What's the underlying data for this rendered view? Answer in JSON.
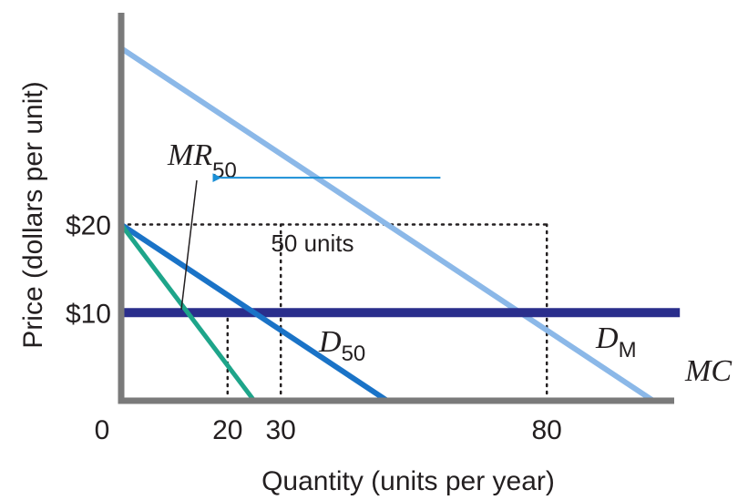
{
  "chart_data": {
    "type": "line",
    "title": "",
    "xlabel": "Quantity (units per year)",
    "ylabel": "Price (dollars per unit)",
    "xlim": [
      0,
      100
    ],
    "ylim": [
      0,
      40
    ],
    "x_ticks": [
      {
        "value": 0,
        "label": "0"
      },
      {
        "value": 20,
        "label": "20"
      },
      {
        "value": 30,
        "label": "30"
      },
      {
        "value": 80,
        "label": "80"
      }
    ],
    "y_ticks": [
      {
        "value": 10,
        "label": "$10"
      },
      {
        "value": 20,
        "label": "$20"
      }
    ],
    "series": [
      {
        "name": "D_M",
        "label_main": "D",
        "label_sub": "M",
        "color": "#8bb8e8",
        "points": [
          [
            0,
            40
          ],
          [
            100,
            0
          ]
        ]
      },
      {
        "name": "D_50",
        "label_main": "D",
        "label_sub": "50",
        "color": "#1a73c7",
        "points": [
          [
            0,
            20
          ],
          [
            50,
            0
          ]
        ]
      },
      {
        "name": "MR_50",
        "label_main": "MR",
        "label_sub": "50",
        "color": "#1ea58a",
        "points": [
          [
            0,
            20
          ],
          [
            25,
            0
          ]
        ]
      },
      {
        "name": "MC",
        "label_main": "MC",
        "label_sub": "",
        "color": "#2a2e8c",
        "points": [
          [
            0,
            10
          ],
          [
            105,
            10
          ]
        ]
      }
    ],
    "reference_lines": [
      {
        "from": [
          0,
          20
        ],
        "to": [
          80,
          20
        ],
        "style": "dotted"
      },
      {
        "from": [
          20,
          0
        ],
        "to": [
          20,
          10
        ],
        "style": "dotted"
      },
      {
        "from": [
          30,
          0
        ],
        "to": [
          30,
          20
        ],
        "style": "dotted"
      },
      {
        "from": [
          80,
          0
        ],
        "to": [
          80,
          20
        ],
        "style": "dotted"
      }
    ],
    "annotations": [
      {
        "text": "50 units",
        "arrow_from": [
          60,
          25
        ],
        "arrow_to": [
          17,
          25
        ],
        "arrow_color": "#1a8fd6"
      }
    ]
  }
}
